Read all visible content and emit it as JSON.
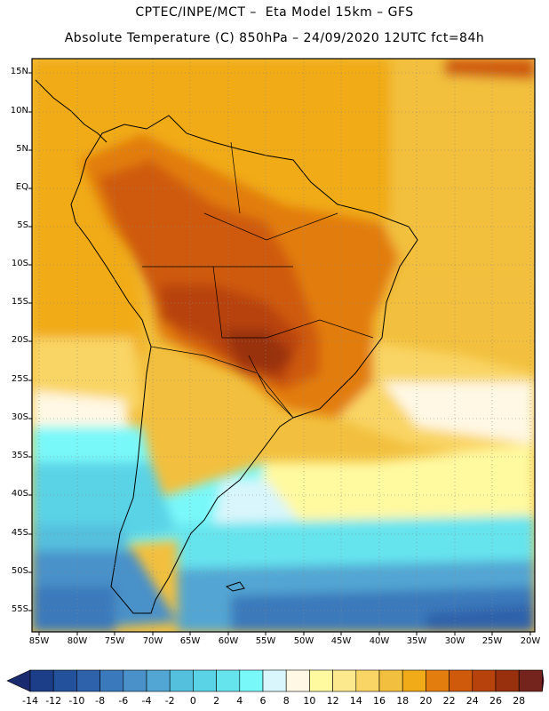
{
  "header": {
    "line1": "CPTEC/INPE/MCT –  Eta Model 15km – GFS",
    "line2": "Absolute Temperature (C) 850hPa – 24/09/2020 12UTC fct=84h"
  },
  "map": {
    "lat_labels": [
      "15N",
      "10N",
      "5N",
      "EQ",
      "5S",
      "10S",
      "15S",
      "20S",
      "25S",
      "30S",
      "35S",
      "40S",
      "45S",
      "50S",
      "55S"
    ],
    "lon_labels": [
      "85W",
      "80W",
      "75W",
      "70W",
      "65W",
      "60W",
      "55W",
      "50W",
      "45W",
      "40W",
      "35W",
      "30W",
      "25W",
      "20W"
    ],
    "grid": "dotted"
  },
  "colorbar": {
    "labels": [
      "-14",
      "-12",
      "-10",
      "-8",
      "-6",
      "-4",
      "-2",
      "0",
      "2",
      "4",
      "6",
      "8",
      "10",
      "12",
      "14",
      "16",
      "18",
      "20",
      "22",
      "24",
      "26",
      "28"
    ],
    "colors": [
      "#1c3d87",
      "#24519b",
      "#2e62ab",
      "#3a79bb",
      "#4a91c9",
      "#52a6d3",
      "#55bfde",
      "#5ad3e6",
      "#66e4ee",
      "#79f8f9",
      "#d8f6fb",
      "#fff8e4",
      "#fff9a0",
      "#fde98d",
      "#f9d565",
      "#f2c03e",
      "#f1ab18",
      "#e27d0e",
      "#cf5a0b",
      "#b8420c",
      "#98300d",
      "#74241c"
    ],
    "low_arrow_color": "#1a2a6e",
    "high_arrow_color": "#7e0b2e"
  }
}
